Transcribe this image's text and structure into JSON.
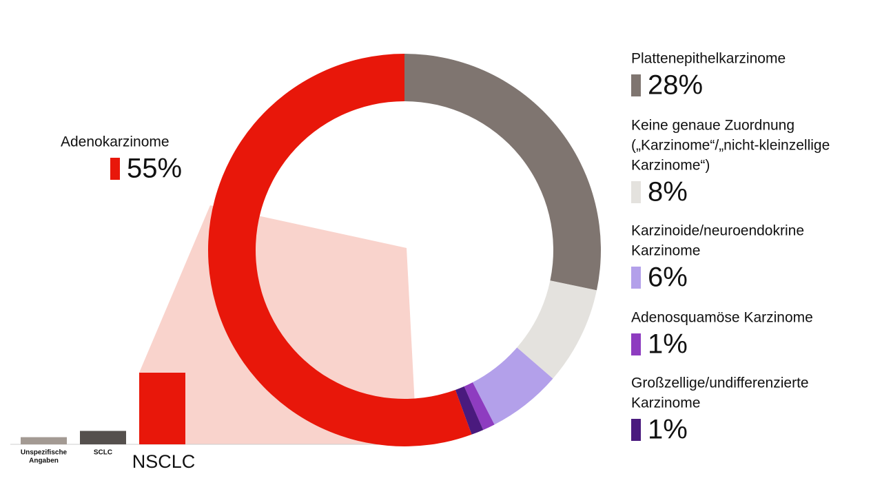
{
  "chart_data": [
    {
      "type": "donut",
      "series": [
        {
          "name": [
            "Plattenepithelkarzinome"
          ],
          "color": "#7f7570",
          "values": [
            28
          ],
          "value_labels": [
            "28%"
          ]
        },
        {
          "name": [
            "Keine genaue Zuordnung",
            "(„Karzinome“/„nicht-kleinzellige",
            "Karzinome“)"
          ],
          "color": "#e4e2de",
          "values": [
            8
          ],
          "value_labels": [
            "8%"
          ]
        },
        {
          "name": [
            "Karzinoide/neuroendokrine",
            "Karzinome"
          ],
          "color": "#b3a0ea",
          "values": [
            6
          ],
          "value_labels": [
            "6%"
          ]
        },
        {
          "name": [
            "Adenosquamöse Karzinome"
          ],
          "color": "#8e3cc0",
          "values": [
            1
          ],
          "value_labels": [
            "1%"
          ]
        },
        {
          "name": [
            "Großzellige/undifferenzierte",
            "Karzinome"
          ],
          "color": "#4a1a7e",
          "values": [
            1
          ],
          "value_labels": [
            "1%"
          ]
        },
        {
          "name": [
            "Adenokarzinome"
          ],
          "color": "#e8170a",
          "values": [
            55
          ],
          "value_labels": [
            "55%"
          ]
        }
      ]
    },
    {
      "type": "bar",
      "categories": [
        [
          "Unspezifische",
          "Angaben"
        ],
        [
          "SCLC"
        ],
        [
          "NSCLC"
        ]
      ],
      "values": [
        8,
        15,
        80
      ],
      "colors": [
        "#a39a93",
        "#55504d",
        "#e8170a"
      ],
      "ylim": [
        0,
        100
      ]
    }
  ]
}
